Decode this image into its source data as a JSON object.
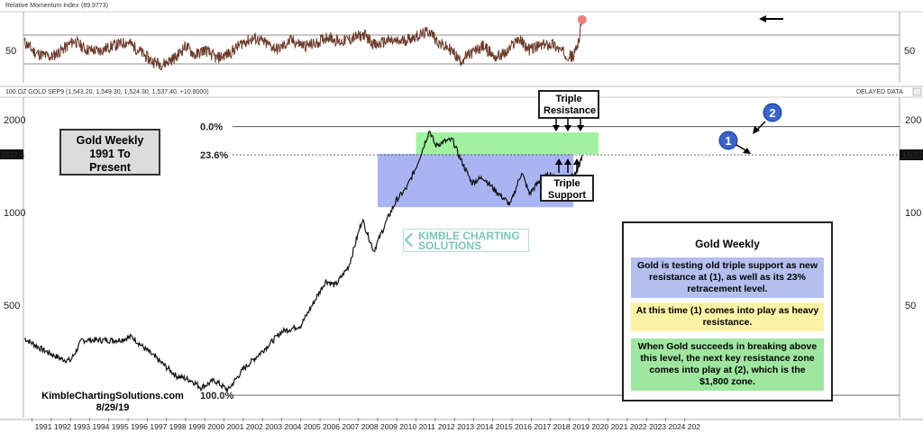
{
  "rsi_panel": {
    "header": "Relative Momentum Index",
    "header_value": "(89.9773)",
    "left_tick": "50",
    "right_tick": "50"
  },
  "price_panel": {
    "header": "100 OZ GOLD SEP9 (1,543.20, 1,549.30, 1,524.30, 1,537.40, +10.8000)",
    "delayed_label": "DELAYED DATA",
    "price_tag": "1537.4",
    "price_tag_right": "1537",
    "left_ticks": [
      "2000",
      "1000",
      "500"
    ],
    "right_ticks": [
      "200",
      "100",
      "50"
    ],
    "fib_0": "0.0%",
    "fib_236": "23.6%",
    "fib_100": "100.0%"
  },
  "title_box": {
    "line1": "Gold Weekly",
    "line2": "1991 To",
    "line3": "Present"
  },
  "triple_resistance": {
    "line1": "Triple",
    "line2": "Resistance"
  },
  "triple_support": {
    "line1": "Triple",
    "line2": "Support"
  },
  "markers": {
    "one": "1",
    "two": "2"
  },
  "watermark": {
    "line1": "KIMBLE CHARTING",
    "line2": "SOLUTIONS"
  },
  "panel": {
    "title": "Gold Weekly",
    "note1": "Gold is testing old triple support as new resistance at (1), as well as its 23% retracement level.",
    "note2": "At this time (1) comes into play as heavy resistance.",
    "note3": "When Gold succeeds in breaking above this level, the next key resistance zone comes into play at (2), which is the $1,800 zone."
  },
  "credit": {
    "site": "KimbleChartingSolutions.com",
    "date": "8/29/19"
  },
  "colors": {
    "blue_zone": "#9aa8f0",
    "green_zone": "#8fee8f",
    "marker_blue": "#3a63c9",
    "rsi_point": "#f08080",
    "price_line": "#111111"
  },
  "chart_data": {
    "type": "line",
    "title": "Gold Weekly 1991 To Present",
    "x_ticks": [
      "1991",
      "1992",
      "1993",
      "1994",
      "1995",
      "1996",
      "1997",
      "1998",
      "1999",
      "2000",
      "2001",
      "2002",
      "2003",
      "2004",
      "2005",
      "2006",
      "2007",
      "2008",
      "2009",
      "2010",
      "2011",
      "2012",
      "2013",
      "2014",
      "2015",
      "2016",
      "2017",
      "2018",
      "2019",
      "2020",
      "2021",
      "2022",
      "2023",
      "2024",
      "202"
    ],
    "y_scale": "log",
    "ylim": [
      250,
      2300
    ],
    "series": [
      {
        "name": "100 OZ GOLD SEP9",
        "x": [
          1990.6,
          1991.5,
          1992.5,
          1993.0,
          1993.6,
          1994.5,
          1995.5,
          1996.2,
          1996.9,
          1997.5,
          1998.5,
          1999.3,
          1999.8,
          2000.5,
          2001.2,
          2002.0,
          2003.0,
          2004.0,
          2005.0,
          2006.3,
          2006.8,
          2007.5,
          2008.2,
          2008.8,
          2009.5,
          2010.0,
          2010.5,
          2011.0,
          2011.7,
          2012.0,
          2012.5,
          2012.9,
          2013.3,
          2013.9,
          2014.5,
          2015.0,
          2015.9,
          2016.5,
          2016.9,
          2017.5,
          2018.0,
          2018.7,
          2019.0,
          2019.4,
          2019.65
        ],
        "values": [
          390,
          360,
          335,
          330,
          385,
          385,
          385,
          395,
          360,
          335,
          295,
          285,
          270,
          285,
          265,
          310,
          355,
          410,
          430,
          600,
          580,
          670,
          950,
          750,
          950,
          1100,
          1200,
          1400,
          1850,
          1650,
          1700,
          1720,
          1500,
          1250,
          1300,
          1200,
          1060,
          1350,
          1150,
          1280,
          1330,
          1200,
          1300,
          1350,
          1537.4
        ]
      }
    ],
    "rsi_series": {
      "name": "Relative Momentum Index",
      "last_value": 89.9773,
      "reference_level": 50,
      "x": [
        1990.6,
        1991.2,
        1992.0,
        1992.7,
        1993.2,
        1993.8,
        1994.5,
        1995.2,
        1996.0,
        1996.5,
        1997.2,
        1997.8,
        1998.5,
        1999.0,
        1999.5,
        2000.0,
        2000.6,
        2001.3,
        2002.0,
        2002.6,
        2003.2,
        2003.8,
        2004.5,
        2005.2,
        2005.8,
        2006.4,
        2007.0,
        2007.7,
        2008.3,
        2008.9,
        2009.5,
        2010.1,
        2010.7,
        2011.3,
        2011.7,
        2012.2,
        2012.8,
        2013.3,
        2013.9,
        2014.5,
        2015.1,
        2015.7,
        2016.3,
        2016.9,
        2017.5,
        2018.1,
        2018.7,
        2019.2,
        2019.5,
        2019.65
      ],
      "values": [
        60,
        45,
        40,
        52,
        62,
        50,
        48,
        55,
        60,
        50,
        35,
        30,
        40,
        55,
        42,
        50,
        38,
        45,
        60,
        65,
        58,
        50,
        62,
        55,
        58,
        68,
        60,
        65,
        70,
        55,
        62,
        60,
        65,
        70,
        75,
        58,
        50,
        35,
        45,
        55,
        40,
        45,
        65,
        50,
        55,
        58,
        45,
        40,
        65,
        90
      ]
    },
    "annotations": [
      "Triple Resistance",
      "Triple Support",
      "0.0%",
      "23.6%",
      "100.0%",
      "1",
      "2"
    ],
    "fib_levels": {
      "0.0%": 1900,
      "23.6%": 1537.4,
      "100.0%": 255
    },
    "zones": [
      {
        "name": "blue",
        "x": [
          2009.0,
          2019.2
        ],
        "y": [
          1040,
          1550
        ]
      },
      {
        "name": "green",
        "x": [
          2011.0,
          2020.5
        ],
        "y": [
          1545,
          1820
        ]
      }
    ],
    "grid": false,
    "legend": "none"
  }
}
